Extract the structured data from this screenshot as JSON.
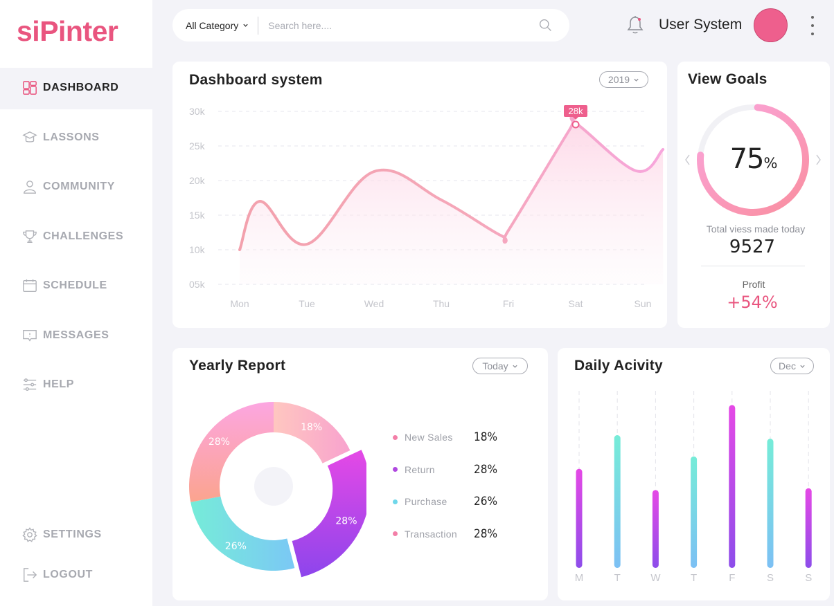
{
  "app": {
    "logo": "siPinter"
  },
  "nav": [
    {
      "label": "DASHBOARD",
      "icon": "dashboard-icon",
      "active": true
    },
    {
      "label": "LASSONS",
      "icon": "graduation-cap-icon"
    },
    {
      "label": "COMMUNITY",
      "icon": "user-icon"
    },
    {
      "label": "CHALLENGES",
      "icon": "trophy-icon"
    },
    {
      "label": "SCHEDULE",
      "icon": "calendar-icon"
    },
    {
      "label": "MESSAGES",
      "icon": "message-icon"
    },
    {
      "label": "HELP",
      "icon": "sliders-icon"
    }
  ],
  "nav_bottom": [
    {
      "label": "SETTINGS",
      "icon": "gear-icon"
    },
    {
      "label": "LOGOUT",
      "icon": "logout-icon"
    }
  ],
  "topbar": {
    "category": "All Category",
    "search_placeholder": "Search here....",
    "user_name": "User System"
  },
  "dashboard": {
    "title": "Dashboard system",
    "year_filter": "2019",
    "peak_label": "28k"
  },
  "chart_data": {
    "type": "area",
    "categories": [
      "Mon",
      "Tue",
      "Wed",
      "Thu",
      "Fri",
      "Sat",
      "Sun"
    ],
    "y_tick_labels": [
      "30k",
      "25k",
      "20k",
      "15k",
      "10k",
      "05k"
    ],
    "ylim": [
      5,
      30
    ],
    "x": [
      0,
      0.3,
      1,
      2,
      3,
      3.9,
      4,
      4.9,
      5,
      5.9,
      6.3
    ],
    "values": [
      10,
      17,
      10.8,
      21.3,
      17.2,
      12,
      12.8,
      27.2,
      28.3,
      21.4,
      24.5
    ],
    "peak": {
      "x": 5,
      "value": 28,
      "label": "28k"
    },
    "grid": true,
    "color": "#f59bbd"
  },
  "goals": {
    "title": "View Goals",
    "percent": "75",
    "percent_sign": "%",
    "progress": 0.75,
    "total_label": "Total viess made today",
    "total_value": "9527",
    "profit_label": "Profit",
    "profit_value": "+54%"
  },
  "yearly": {
    "title": "Yearly Report",
    "filter": "Today",
    "segments": [
      {
        "label": "New Sales",
        "value": 18,
        "display": "18%",
        "dot": "#f37fa8"
      },
      {
        "label": "Return",
        "value": 28,
        "display": "28%",
        "dot": "#b048e0"
      },
      {
        "label": "Purchase",
        "value": 26,
        "display": "26%",
        "dot": "#6fd7ea"
      },
      {
        "label": "Transaction",
        "value": 28,
        "display": "28%",
        "dot": "#f37fa8"
      }
    ]
  },
  "daily": {
    "title": "Daily Acivity",
    "filter": "Dec",
    "days": [
      "M",
      "T",
      "W",
      "T",
      "F",
      "S",
      "S"
    ],
    "values": [
      0.56,
      0.75,
      0.44,
      0.63,
      0.92,
      0.73,
      0.45
    ],
    "kinds": [
      "purple",
      "teal",
      "purple",
      "teal",
      "purple",
      "teal",
      "purple"
    ]
  }
}
